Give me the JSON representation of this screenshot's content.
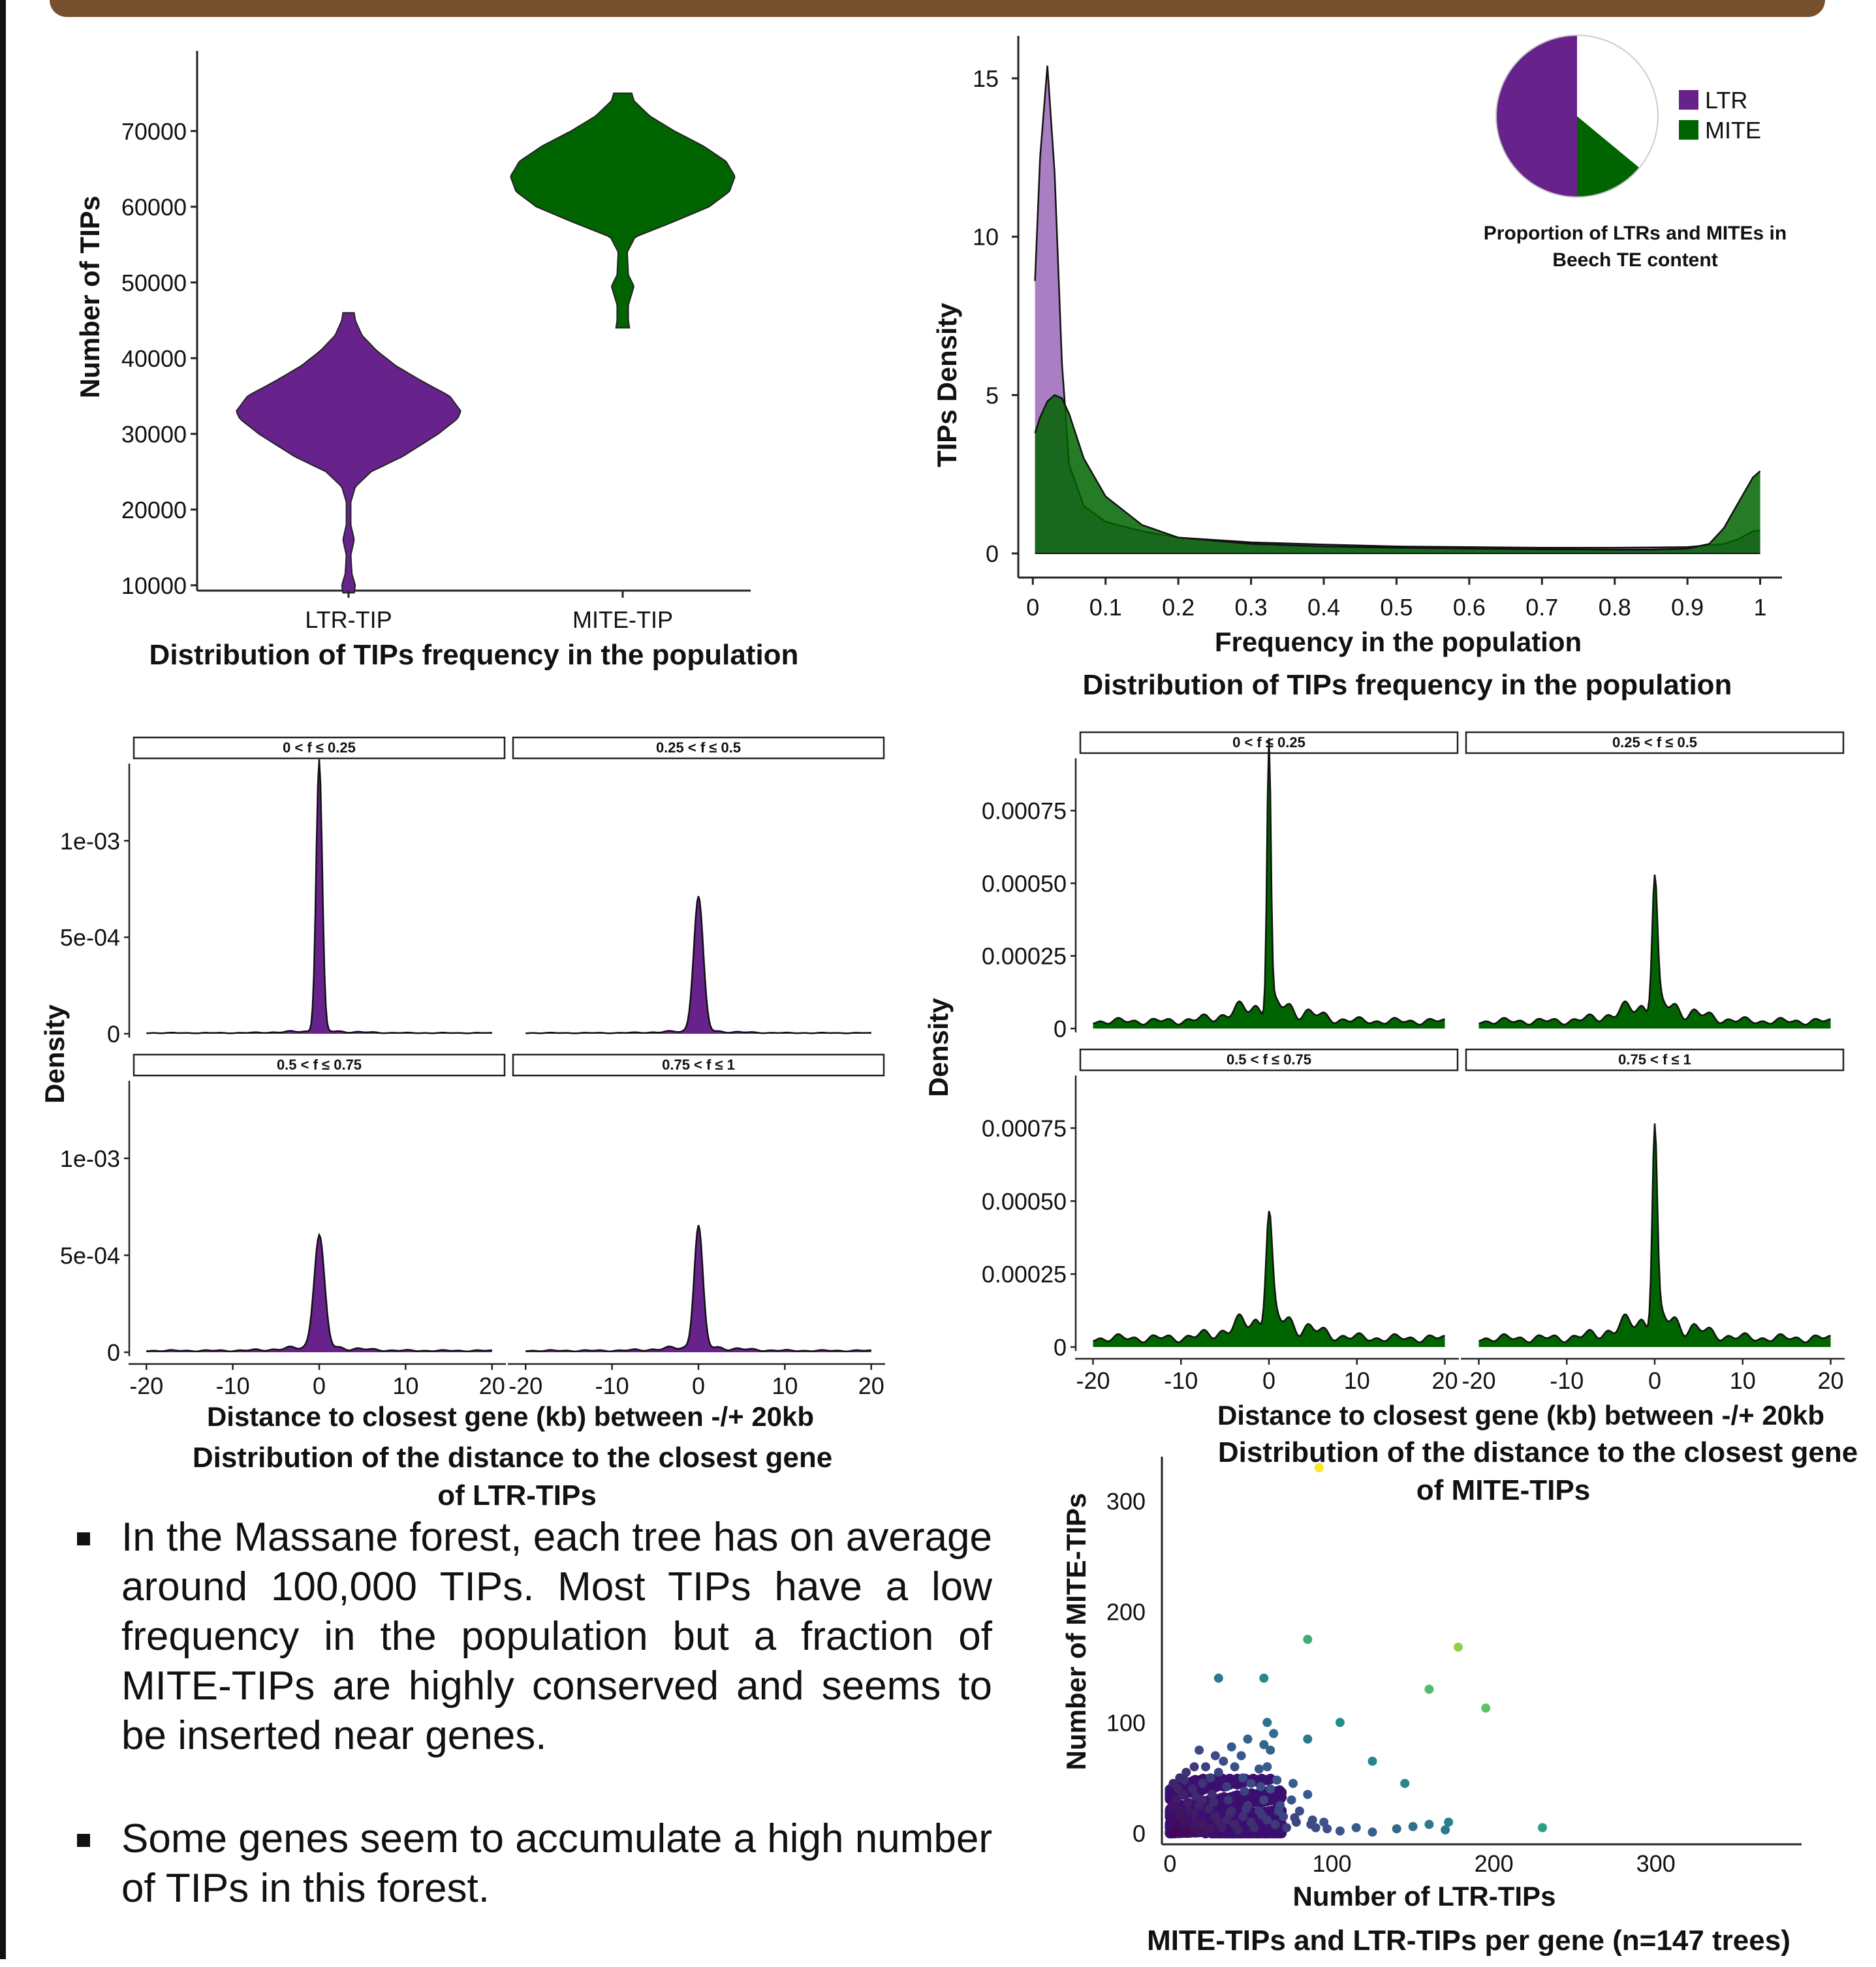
{
  "colors": {
    "ltr": "#68228b",
    "ltr_light": "#9b67b8",
    "mite": "#006400",
    "mite_light": "#4f9a4f",
    "banner": "#764f2d"
  },
  "chart_data": [
    {
      "id": "violin",
      "type": "violin",
      "title": "Distribution of TIPs frequency in the population",
      "xlabel": "",
      "ylabel": "Number of TIPs",
      "categories": [
        "LTR-TIP",
        "MITE-TIP"
      ],
      "yticks": [
        10000,
        20000,
        30000,
        40000,
        50000,
        60000,
        70000
      ],
      "ylim": [
        8000,
        78000
      ],
      "series": [
        {
          "name": "LTR-TIP",
          "min": 9000,
          "max": 46000,
          "profile": [
            [
              9000,
              0.05
            ],
            [
              10000,
              0.06
            ],
            [
              11500,
              0.03
            ],
            [
              14000,
              0.02
            ],
            [
              16000,
              0.05
            ],
            [
              18000,
              0.02
            ],
            [
              21000,
              0.02
            ],
            [
              23000,
              0.06
            ],
            [
              25000,
              0.2
            ],
            [
              27000,
              0.48
            ],
            [
              30000,
              0.8
            ],
            [
              32000,
              0.97
            ],
            [
              33000,
              1.0
            ],
            [
              35000,
              0.9
            ],
            [
              37000,
              0.65
            ],
            [
              39000,
              0.42
            ],
            [
              41000,
              0.25
            ],
            [
              43000,
              0.12
            ],
            [
              45000,
              0.06
            ],
            [
              46000,
              0.05
            ]
          ]
        },
        {
          "name": "MITE-TIP",
          "min": 44000,
          "max": 75000,
          "profile": [
            [
              44000,
              0.06
            ],
            [
              45000,
              0.05
            ],
            [
              47000,
              0.05
            ],
            [
              49500,
              0.1
            ],
            [
              51000,
              0.05
            ],
            [
              54000,
              0.04
            ],
            [
              56000,
              0.11
            ],
            [
              58000,
              0.45
            ],
            [
              60000,
              0.77
            ],
            [
              62000,
              0.95
            ],
            [
              64000,
              1.0
            ],
            [
              66000,
              0.92
            ],
            [
              68000,
              0.72
            ],
            [
              70000,
              0.46
            ],
            [
              72000,
              0.24
            ],
            [
              74000,
              0.1
            ],
            [
              75000,
              0.08
            ]
          ]
        }
      ]
    },
    {
      "id": "density",
      "type": "area",
      "title": "Distribution of TIPs frequency in the population",
      "xlabel": "Frequency in the population",
      "ylabel": "TIPs Density",
      "xticks": [
        0,
        0.1,
        0.2,
        0.3,
        0.4,
        0.5,
        0.6,
        0.7,
        0.8,
        0.9,
        1
      ],
      "yticks": [
        0,
        5,
        10,
        15
      ],
      "xlim": [
        -0.02,
        1.03
      ],
      "ylim": [
        0,
        16
      ],
      "series": [
        {
          "name": "LTR",
          "x": [
            0.003,
            0.01,
            0.02,
            0.03,
            0.04,
            0.05,
            0.07,
            0.1,
            0.15,
            0.2,
            0.3,
            0.4,
            0.5,
            0.6,
            0.7,
            0.8,
            0.9,
            0.95,
            0.97,
            0.99,
            1.0
          ],
          "y": [
            8.6,
            12.5,
            15.4,
            12.0,
            6.0,
            2.8,
            1.5,
            1.0,
            0.7,
            0.5,
            0.35,
            0.28,
            0.22,
            0.2,
            0.18,
            0.18,
            0.2,
            0.3,
            0.45,
            0.7,
            0.72
          ]
        },
        {
          "name": "MITE",
          "x": [
            0.003,
            0.01,
            0.02,
            0.03,
            0.04,
            0.05,
            0.07,
            0.1,
            0.15,
            0.2,
            0.3,
            0.4,
            0.5,
            0.6,
            0.7,
            0.8,
            0.85,
            0.9,
            0.93,
            0.95,
            0.97,
            0.99,
            1.0
          ],
          "y": [
            3.8,
            4.3,
            4.8,
            5.0,
            4.9,
            4.4,
            3.0,
            1.8,
            0.9,
            0.5,
            0.3,
            0.22,
            0.18,
            0.15,
            0.13,
            0.12,
            0.12,
            0.15,
            0.3,
            0.8,
            1.6,
            2.4,
            2.6
          ]
        }
      ]
    },
    {
      "id": "pie",
      "type": "pie",
      "caption": "Proportion of LTRs and MITEs in Beech TE content",
      "caption_lines": [
        "Proportion of LTRs and MITEs in",
        "Beech TE content"
      ],
      "slices": [
        {
          "name": "LTR",
          "value": 0.5
        },
        {
          "name": "MITE",
          "value": 0.14
        },
        {
          "name": "",
          "value": 0.36
        }
      ],
      "legend": [
        "LTR",
        "MITE"
      ]
    },
    {
      "id": "ltr_facets",
      "type": "area",
      "title": "Distribution of the distance to the closest gene of LTR-TIPs",
      "title_lines": [
        "Distribution of the distance to the closest gene",
        "of LTR-TIPs"
      ],
      "xlabel": "Distance to closest gene (kb) between -/+ 20kb",
      "ylabel": "Density",
      "xticks": [
        -20,
        -10,
        0,
        10,
        20
      ],
      "xlim": [
        -21,
        21
      ],
      "ylim": [
        0,
        0.0014
      ],
      "yticks": [
        {
          "value": 0,
          "label": "0"
        },
        {
          "value": 0.0005,
          "label": "5e-04"
        },
        {
          "value": 0.001,
          "label": "1e-03"
        }
      ],
      "panels": [
        {
          "label": "0 < f ≤ 0.25",
          "peak": 0.00141,
          "width": 0.35,
          "base": 4e-06
        },
        {
          "label": "0.25 < f ≤ 0.5",
          "peak": 0.0007,
          "width": 0.55,
          "base": 4e-06
        },
        {
          "label": "0.5 < f ≤ 0.75",
          "peak": 0.00058,
          "width": 0.6,
          "base": 8e-06
        },
        {
          "label": "0.75 < f ≤ 1",
          "peak": 0.00063,
          "width": 0.5,
          "base": 8e-06
        }
      ]
    },
    {
      "id": "mite_facets",
      "type": "area",
      "title": "Distribution of the distance to the closest gene of MITE-TIPs",
      "title_lines": [
        "Distribution of the distance to the closest gene",
        "of MITE-TIPs"
      ],
      "xlabel": "Distance to closest gene (kb) between -/+ 20kb",
      "ylabel": "Density",
      "xticks": [
        -20,
        -10,
        0,
        10,
        20
      ],
      "xlim": [
        -21,
        21
      ],
      "ylim": [
        0,
        0.00093
      ],
      "yticks": [
        {
          "value": 0,
          "label": "0"
        },
        {
          "value": 0.00025,
          "label": "0.00025"
        },
        {
          "value": 0.0005,
          "label": "0.00050"
        },
        {
          "value": 0.00075,
          "label": "0.00075"
        }
      ],
      "panels": [
        {
          "label": "0 < f ≤ 0.25",
          "peak": 0.00092,
          "width": 0.22,
          "base": 2.5e-05
        },
        {
          "label": "0.25 < f ≤ 0.5",
          "peak": 0.00045,
          "width": 0.3,
          "base": 2.5e-05
        },
        {
          "label": "0.5 < f ≤ 0.75",
          "peak": 0.00037,
          "width": 0.35,
          "base": 3e-05
        },
        {
          "label": "0.75 < f ≤ 1",
          "peak": 0.00067,
          "width": 0.28,
          "base": 3e-05
        }
      ]
    },
    {
      "id": "scatter",
      "type": "scatter",
      "title": "MITE-TIPs and LTR-TIPs per gene (n=147 trees)",
      "xlabel": "Number of LTR-TIPs",
      "ylabel": "Number of MITE-TIPs",
      "xticks": [
        0,
        100,
        200,
        300
      ],
      "yticks": [
        0,
        100,
        200,
        300
      ],
      "xlim": [
        -5,
        390
      ],
      "ylim": [
        -10,
        340
      ],
      "points": [
        [
          2,
          0
        ],
        [
          5,
          2
        ],
        [
          8,
          1
        ],
        [
          10,
          3
        ],
        [
          12,
          0
        ],
        [
          15,
          5
        ],
        [
          18,
          2
        ],
        [
          20,
          8
        ],
        [
          22,
          1
        ],
        [
          25,
          4
        ],
        [
          3,
          10
        ],
        [
          6,
          15
        ],
        [
          9,
          12
        ],
        [
          12,
          20
        ],
        [
          15,
          18
        ],
        [
          18,
          25
        ],
        [
          4,
          30
        ],
        [
          8,
          35
        ],
        [
          11,
          28
        ],
        [
          14,
          40
        ],
        [
          2,
          45
        ],
        [
          6,
          50
        ],
        [
          20,
          30
        ],
        [
          24,
          22
        ],
        [
          28,
          15
        ],
        [
          30,
          10
        ],
        [
          32,
          5
        ],
        [
          35,
          12
        ],
        [
          38,
          20
        ],
        [
          40,
          8
        ],
        [
          42,
          3
        ],
        [
          45,
          15
        ],
        [
          48,
          25
        ],
        [
          50,
          10
        ],
        [
          52,
          5
        ],
        [
          55,
          20
        ],
        [
          58,
          30
        ],
        [
          60,
          12
        ],
        [
          62,
          40
        ],
        [
          65,
          8
        ],
        [
          68,
          25
        ],
        [
          70,
          15
        ],
        [
          72,
          5
        ],
        [
          75,
          30
        ],
        [
          78,
          10
        ],
        [
          80,
          20
        ],
        [
          85,
          35
        ],
        [
          88,
          12
        ],
        [
          90,
          5
        ],
        [
          95,
          10
        ],
        [
          20,
          45
        ],
        [
          25,
          50
        ],
        [
          30,
          55
        ],
        [
          35,
          42
        ],
        [
          40,
          60
        ],
        [
          45,
          50
        ],
        [
          50,
          45
        ],
        [
          55,
          58
        ],
        [
          22,
          60
        ],
        [
          28,
          70
        ],
        [
          33,
          65
        ],
        [
          18,
          75
        ],
        [
          38,
          78
        ],
        [
          44,
          70
        ],
        [
          48,
          85
        ],
        [
          58,
          80
        ],
        [
          64,
          90
        ],
        [
          85,
          85
        ],
        [
          15,
          60
        ],
        [
          10,
          55
        ],
        [
          5,
          40
        ],
        [
          2,
          25
        ],
        [
          6,
          20
        ],
        [
          16,
          10
        ],
        [
          26,
          35
        ],
        [
          36,
          30
        ],
        [
          46,
          38
        ],
        [
          56,
          42
        ],
        [
          66,
          48
        ],
        [
          76,
          45
        ],
        [
          16,
          33
        ],
        [
          9,
          48
        ],
        [
          27,
          28
        ],
        [
          37,
          18
        ],
        [
          47,
          22
        ],
        [
          57,
          16
        ],
        [
          67,
          20
        ],
        [
          77,
          14
        ],
        [
          87,
          8
        ],
        [
          97,
          4
        ],
        [
          105,
          2
        ],
        [
          115,
          5
        ],
        [
          125,
          1
        ],
        [
          140,
          4
        ],
        [
          150,
          6
        ],
        [
          160,
          8
        ],
        [
          170,
          3
        ],
        [
          172,
          10
        ],
        [
          230,
          5
        ],
        [
          145,
          45
        ],
        [
          125,
          65
        ],
        [
          105,
          100
        ],
        [
          160,
          130
        ],
        [
          195,
          113
        ],
        [
          60,
          100
        ],
        [
          58,
          140
        ],
        [
          30,
          140
        ],
        [
          85,
          175
        ],
        [
          178,
          168
        ],
        [
          92,
          330
        ],
        [
          60,
          60
        ],
        [
          62,
          75
        ]
      ]
    }
  ],
  "bullets": [
    "In the Massane forest, each tree has on average around 100,000 TIPs. Most TIPs have a low frequency in the population but a fraction of MITE-TIPs are highly conserved and seems to be inserted near genes.",
    "Some genes seem to accumulate a high number of TIPs in this forest."
  ]
}
